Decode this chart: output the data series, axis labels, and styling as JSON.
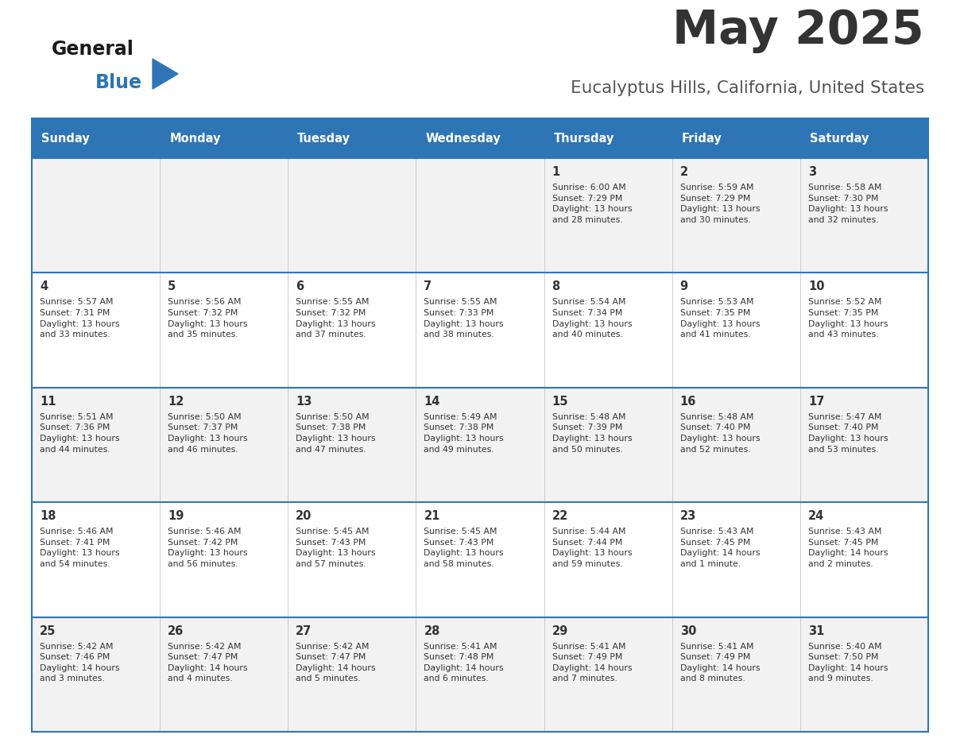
{
  "title": "May 2025",
  "subtitle": "Eucalyptus Hills, California, United States",
  "header_bg": "#2E75B6",
  "header_text": "#FFFFFF",
  "odd_row_bg": "#F2F2F2",
  "even_row_bg": "#FFFFFF",
  "border_color": "#2E75B6",
  "title_color": "#333333",
  "subtitle_color": "#555555",
  "day_names": [
    "Sunday",
    "Monday",
    "Tuesday",
    "Wednesday",
    "Thursday",
    "Friday",
    "Saturday"
  ],
  "calendar": [
    [
      {
        "day": "",
        "info": ""
      },
      {
        "day": "",
        "info": ""
      },
      {
        "day": "",
        "info": ""
      },
      {
        "day": "",
        "info": ""
      },
      {
        "day": "1",
        "info": "Sunrise: 6:00 AM\nSunset: 7:29 PM\nDaylight: 13 hours\nand 28 minutes."
      },
      {
        "day": "2",
        "info": "Sunrise: 5:59 AM\nSunset: 7:29 PM\nDaylight: 13 hours\nand 30 minutes."
      },
      {
        "day": "3",
        "info": "Sunrise: 5:58 AM\nSunset: 7:30 PM\nDaylight: 13 hours\nand 32 minutes."
      }
    ],
    [
      {
        "day": "4",
        "info": "Sunrise: 5:57 AM\nSunset: 7:31 PM\nDaylight: 13 hours\nand 33 minutes."
      },
      {
        "day": "5",
        "info": "Sunrise: 5:56 AM\nSunset: 7:32 PM\nDaylight: 13 hours\nand 35 minutes."
      },
      {
        "day": "6",
        "info": "Sunrise: 5:55 AM\nSunset: 7:32 PM\nDaylight: 13 hours\nand 37 minutes."
      },
      {
        "day": "7",
        "info": "Sunrise: 5:55 AM\nSunset: 7:33 PM\nDaylight: 13 hours\nand 38 minutes."
      },
      {
        "day": "8",
        "info": "Sunrise: 5:54 AM\nSunset: 7:34 PM\nDaylight: 13 hours\nand 40 minutes."
      },
      {
        "day": "9",
        "info": "Sunrise: 5:53 AM\nSunset: 7:35 PM\nDaylight: 13 hours\nand 41 minutes."
      },
      {
        "day": "10",
        "info": "Sunrise: 5:52 AM\nSunset: 7:35 PM\nDaylight: 13 hours\nand 43 minutes."
      }
    ],
    [
      {
        "day": "11",
        "info": "Sunrise: 5:51 AM\nSunset: 7:36 PM\nDaylight: 13 hours\nand 44 minutes."
      },
      {
        "day": "12",
        "info": "Sunrise: 5:50 AM\nSunset: 7:37 PM\nDaylight: 13 hours\nand 46 minutes."
      },
      {
        "day": "13",
        "info": "Sunrise: 5:50 AM\nSunset: 7:38 PM\nDaylight: 13 hours\nand 47 minutes."
      },
      {
        "day": "14",
        "info": "Sunrise: 5:49 AM\nSunset: 7:38 PM\nDaylight: 13 hours\nand 49 minutes."
      },
      {
        "day": "15",
        "info": "Sunrise: 5:48 AM\nSunset: 7:39 PM\nDaylight: 13 hours\nand 50 minutes."
      },
      {
        "day": "16",
        "info": "Sunrise: 5:48 AM\nSunset: 7:40 PM\nDaylight: 13 hours\nand 52 minutes."
      },
      {
        "day": "17",
        "info": "Sunrise: 5:47 AM\nSunset: 7:40 PM\nDaylight: 13 hours\nand 53 minutes."
      }
    ],
    [
      {
        "day": "18",
        "info": "Sunrise: 5:46 AM\nSunset: 7:41 PM\nDaylight: 13 hours\nand 54 minutes."
      },
      {
        "day": "19",
        "info": "Sunrise: 5:46 AM\nSunset: 7:42 PM\nDaylight: 13 hours\nand 56 minutes."
      },
      {
        "day": "20",
        "info": "Sunrise: 5:45 AM\nSunset: 7:43 PM\nDaylight: 13 hours\nand 57 minutes."
      },
      {
        "day": "21",
        "info": "Sunrise: 5:45 AM\nSunset: 7:43 PM\nDaylight: 13 hours\nand 58 minutes."
      },
      {
        "day": "22",
        "info": "Sunrise: 5:44 AM\nSunset: 7:44 PM\nDaylight: 13 hours\nand 59 minutes."
      },
      {
        "day": "23",
        "info": "Sunrise: 5:43 AM\nSunset: 7:45 PM\nDaylight: 14 hours\nand 1 minute."
      },
      {
        "day": "24",
        "info": "Sunrise: 5:43 AM\nSunset: 7:45 PM\nDaylight: 14 hours\nand 2 minutes."
      }
    ],
    [
      {
        "day": "25",
        "info": "Sunrise: 5:42 AM\nSunset: 7:46 PM\nDaylight: 14 hours\nand 3 minutes."
      },
      {
        "day": "26",
        "info": "Sunrise: 5:42 AM\nSunset: 7:47 PM\nDaylight: 14 hours\nand 4 minutes."
      },
      {
        "day": "27",
        "info": "Sunrise: 5:42 AM\nSunset: 7:47 PM\nDaylight: 14 hours\nand 5 minutes."
      },
      {
        "day": "28",
        "info": "Sunrise: 5:41 AM\nSunset: 7:48 PM\nDaylight: 14 hours\nand 6 minutes."
      },
      {
        "day": "29",
        "info": "Sunrise: 5:41 AM\nSunset: 7:49 PM\nDaylight: 14 hours\nand 7 minutes."
      },
      {
        "day": "30",
        "info": "Sunrise: 5:41 AM\nSunset: 7:49 PM\nDaylight: 14 hours\nand 8 minutes."
      },
      {
        "day": "31",
        "info": "Sunrise: 5:40 AM\nSunset: 7:50 PM\nDaylight: 14 hours\nand 9 minutes."
      }
    ]
  ]
}
